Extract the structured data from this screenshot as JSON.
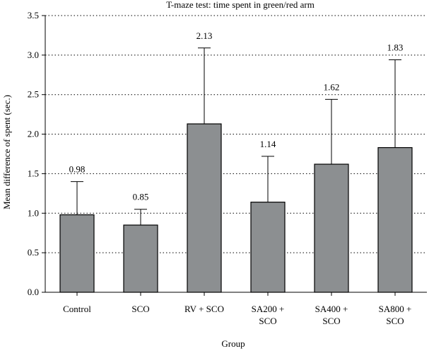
{
  "chart_data": {
    "type": "bar",
    "title": "T-maze test: time spent in green/red arm",
    "xlabel": "Group",
    "ylabel": "Mean difference of spent (sec.)",
    "ylim": [
      0,
      3.5
    ],
    "yticks": [
      "0.0",
      "0.5",
      "1.0",
      "1.5",
      "2.0",
      "2.5",
      "3.0",
      "3.5"
    ],
    "grid": "horizontal dotted",
    "categories": [
      [
        "Control"
      ],
      [
        "SCO"
      ],
      [
        "RV + SCO"
      ],
      [
        "SA200 +",
        "SCO"
      ],
      [
        "SA400 +",
        "SCO"
      ],
      [
        "SA800 +",
        "SCO"
      ]
    ],
    "values": [
      0.98,
      0.85,
      2.13,
      1.14,
      1.62,
      1.83
    ],
    "value_labels": [
      "0.98",
      "0.85",
      "2.13",
      "1.14",
      "1.62",
      "1.83"
    ],
    "error_upper": [
      1.4,
      1.05,
      3.09,
      1.72,
      2.44,
      2.94
    ],
    "bar_color": "#8c8f91"
  }
}
